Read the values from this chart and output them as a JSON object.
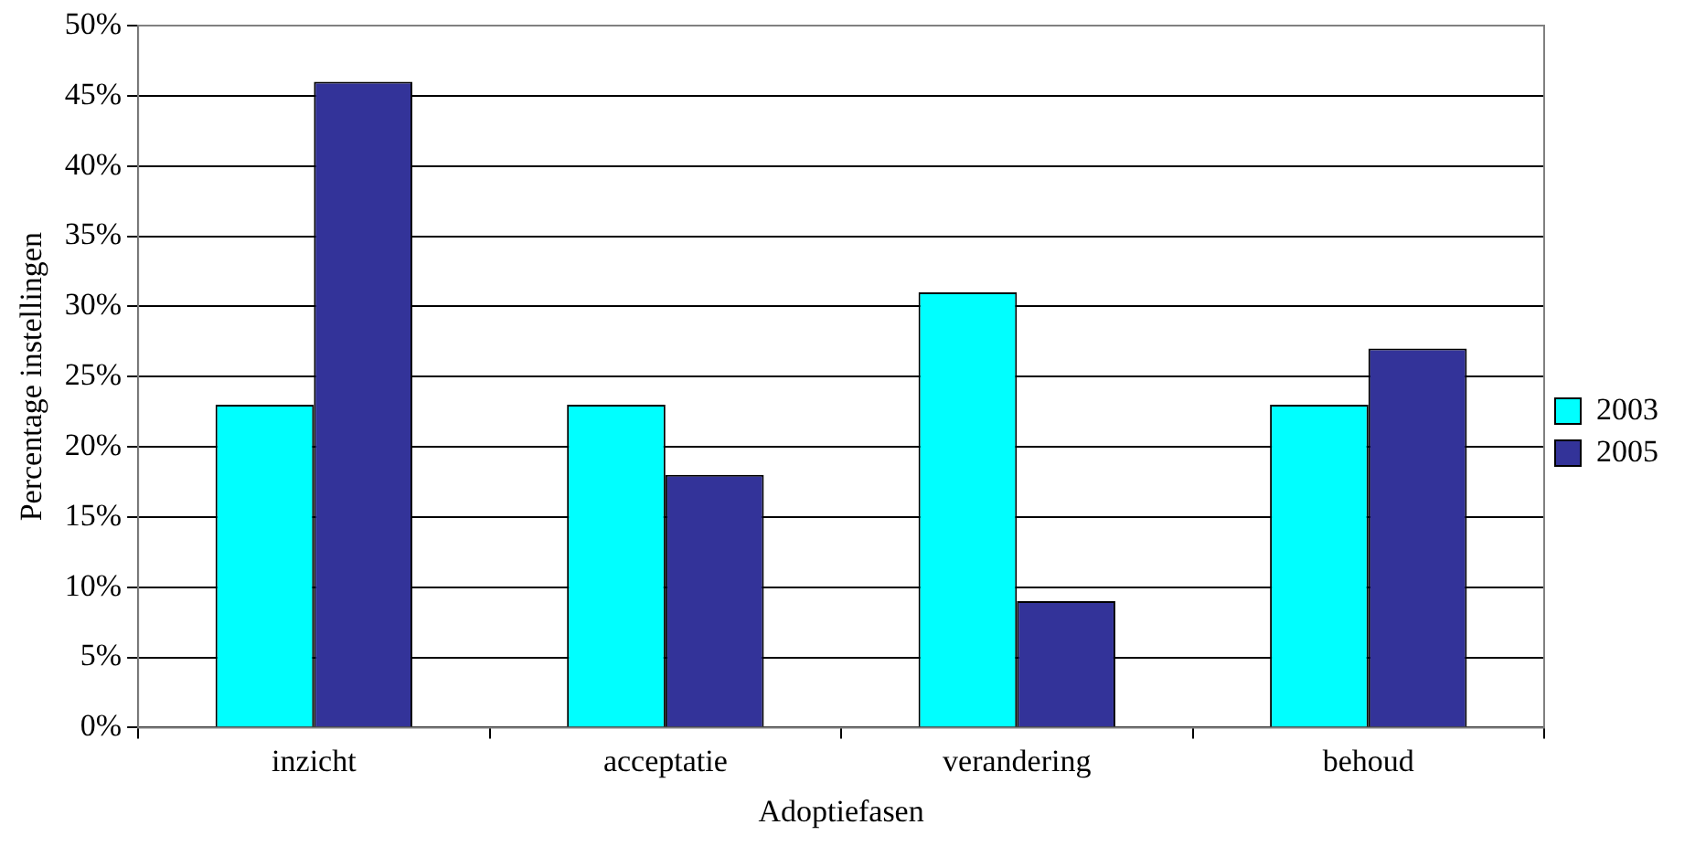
{
  "chart_data": {
    "type": "bar",
    "xlabel": "Adoptiefasen",
    "ylabel": "Percentage instellingen",
    "categories": [
      "inzicht",
      "acceptatie",
      "verandering",
      "behoud"
    ],
    "series": [
      {
        "name": "2003",
        "color": "#00ffff",
        "values": [
          23,
          23,
          31,
          23
        ]
      },
      {
        "name": "2005",
        "color": "#333399",
        "values": [
          46,
          18,
          9,
          27
        ]
      }
    ],
    "ylim": [
      0,
      50
    ],
    "yticks": [
      {
        "value": 0,
        "label": "0%"
      },
      {
        "value": 5,
        "label": "5%"
      },
      {
        "value": 10,
        "label": "10%"
      },
      {
        "value": 15,
        "label": "15%"
      },
      {
        "value": 20,
        "label": "20%"
      },
      {
        "value": 25,
        "label": "25%"
      },
      {
        "value": 30,
        "label": "30%"
      },
      {
        "value": 35,
        "label": "35%"
      },
      {
        "value": 40,
        "label": "40%"
      },
      {
        "value": 45,
        "label": "45%"
      },
      {
        "value": 50,
        "label": "50%"
      }
    ],
    "grid": "y",
    "legend": "right"
  }
}
